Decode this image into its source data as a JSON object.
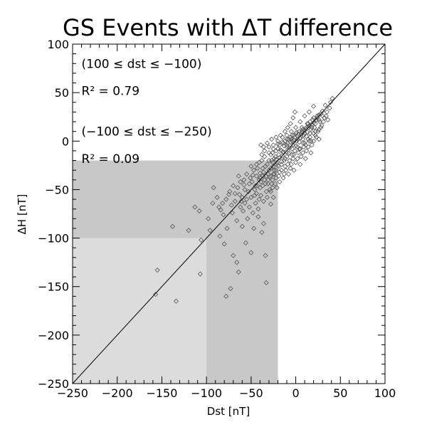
{
  "chart_data": {
    "type": "scatter",
    "title": "GS Events with ΔT difference",
    "xlabel": "Dst [nT]",
    "ylabel": "ΔH [nT]",
    "xlim": [
      -250,
      100
    ],
    "ylim": [
      -250,
      100
    ],
    "xticks": [
      -250,
      -200,
      -150,
      -100,
      -50,
      0,
      50,
      100
    ],
    "yticks": [
      -250,
      -200,
      -150,
      -100,
      -50,
      0,
      50,
      100
    ],
    "reference_line": "y = x",
    "annotations": [
      "(100 ≤ dst ≤ −100)",
      "R² = 0.79",
      "(−100 ≤ dst ≤ −250)",
      "R² = 0.09"
    ],
    "shaded_regions": [
      {
        "x": [
          -250,
          -20
        ],
        "y": [
          -250,
          -20
        ],
        "color": "#c8c8c8"
      },
      {
        "x": [
          -250,
          -100
        ],
        "y": [
          -250,
          -100
        ],
        "color": "#dcdcdc"
      }
    ],
    "marker": "diamond",
    "marker_color": "#555555",
    "series": [
      {
        "points": [
          [
            -155,
            -133
          ],
          [
            -157,
            -158
          ],
          [
            -138,
            -88
          ],
          [
            -134,
            -165
          ],
          [
            -120,
            -92
          ],
          [
            -113,
            -68
          ],
          [
            -108,
            -72
          ],
          [
            -106,
            -102
          ],
          [
            -107,
            -137
          ],
          [
            -98,
            -80
          ],
          [
            -96,
            -92
          ],
          [
            -93,
            -64
          ],
          [
            -85,
            -98
          ],
          [
            -84,
            -71
          ],
          [
            -81,
            -76
          ],
          [
            -80,
            -106
          ],
          [
            -78,
            -160
          ],
          [
            -75,
            -55
          ],
          [
            -73,
            -152
          ],
          [
            -70,
            -118
          ],
          [
            -66,
            -125
          ],
          [
            -64,
            -135
          ],
          [
            -60,
            -88
          ],
          [
            -56,
            -105
          ],
          [
            -50,
            -115
          ],
          [
            -47,
            -90
          ],
          [
            -42,
            -78
          ],
          [
            -38,
            -94
          ],
          [
            -36,
            -85
          ],
          [
            -34,
            -118
          ],
          [
            -33,
            -146
          ],
          [
            -28,
            -65
          ],
          [
            -26,
            -48
          ],
          [
            -24,
            -34
          ],
          [
            -92,
            -48
          ],
          [
            -88,
            -58
          ],
          [
            -77,
            -90
          ],
          [
            -71,
            -74
          ],
          [
            -68,
            -62
          ],
          [
            -58,
            -45
          ],
          [
            -52,
            -68
          ],
          [
            -46,
            -50
          ],
          [
            -41,
            -60
          ],
          [
            -39,
            -42
          ],
          [
            -31,
            -44
          ],
          [
            -29,
            -37
          ],
          [
            -63,
            -55
          ],
          [
            -55,
            -60
          ],
          [
            -49,
            -42
          ],
          [
            -44,
            -36
          ],
          [
            -40,
            -33
          ],
          [
            -37,
            -28
          ],
          [
            -35,
            -40
          ],
          [
            -32,
            -24
          ],
          [
            -30,
            -30
          ],
          [
            -27,
            -20
          ],
          [
            -25,
            -26
          ],
          [
            -23,
            -16
          ],
          [
            -21,
            -22
          ],
          [
            -19,
            -14
          ],
          [
            -17,
            -9
          ],
          [
            -15,
            -15
          ],
          [
            -13,
            -5
          ],
          [
            -11,
            -11
          ],
          [
            -9,
            -2
          ],
          [
            -7,
            -7
          ],
          [
            -5,
            2
          ],
          [
            -3,
            -4
          ],
          [
            -1,
            4
          ],
          [
            1,
            0
          ],
          [
            3,
            7
          ],
          [
            5,
            3
          ],
          [
            7,
            10
          ],
          [
            9,
            6
          ],
          [
            11,
            13
          ],
          [
            13,
            9
          ],
          [
            15,
            16
          ],
          [
            17,
            12
          ],
          [
            20,
            19
          ],
          [
            23,
            22
          ],
          [
            26,
            27
          ],
          [
            30,
            31
          ],
          [
            33,
            37
          ],
          [
            -36,
            -32
          ],
          [
            -34,
            -26
          ],
          [
            -31,
            -34
          ],
          [
            -28,
            -28
          ],
          [
            -26,
            -22
          ],
          [
            -24,
            -30
          ],
          [
            -22,
            -19
          ],
          [
            -20,
            -25
          ],
          [
            -18,
            -17
          ],
          [
            -16,
            -21
          ],
          [
            -14,
            -11
          ],
          [
            -12,
            -18
          ],
          [
            -10,
            -6
          ],
          [
            -8,
            -13
          ],
          [
            -6,
            -1
          ],
          [
            -4,
            -8
          ],
          [
            -2,
            1
          ],
          [
            0,
            -5
          ],
          [
            2,
            5
          ],
          [
            4,
            -1
          ],
          [
            6,
            8
          ],
          [
            8,
            2
          ],
          [
            10,
            11
          ],
          [
            12,
            5
          ],
          [
            14,
            14
          ],
          [
            16,
            8
          ],
          [
            18,
            17
          ],
          [
            21,
            14
          ],
          [
            24,
            24
          ],
          [
            27,
            20
          ],
          [
            -48,
            -35
          ],
          [
            -45,
            -46
          ],
          [
            -43,
            -28
          ],
          [
            -40,
            -48
          ],
          [
            -38,
            -20
          ],
          [
            -35,
            -16
          ],
          [
            -33,
            -52
          ],
          [
            -30,
            -12
          ],
          [
            -27,
            -44
          ],
          [
            -25,
            -8
          ],
          [
            -22,
            -38
          ],
          [
            -20,
            -3
          ],
          [
            -18,
            -32
          ],
          [
            -15,
            -1
          ],
          [
            -12,
            -26
          ],
          [
            -10,
            2
          ],
          [
            -7,
            -20
          ],
          [
            -4,
            6
          ],
          [
            -2,
            -14
          ],
          [
            1,
            9
          ],
          [
            4,
            -8
          ],
          [
            7,
            14
          ],
          [
            10,
            -2
          ],
          [
            13,
            18
          ],
          [
            16,
            4
          ],
          [
            19,
            22
          ],
          [
            22,
            10
          ],
          [
            -44,
            -54
          ],
          [
            -41,
            -40
          ],
          [
            -37,
            -46
          ],
          [
            -33,
            -36
          ],
          [
            -29,
            -50
          ],
          [
            -26,
            -40
          ],
          [
            -23,
            -44
          ],
          [
            -19,
            -36
          ],
          [
            -16,
            -30
          ],
          [
            -13,
            -34
          ],
          [
            -9,
            -24
          ],
          [
            -6,
            -28
          ],
          [
            -3,
            -18
          ],
          [
            0,
            -22
          ],
          [
            3,
            -12
          ],
          [
            6,
            -16
          ],
          [
            9,
            -6
          ],
          [
            12,
            -10
          ],
          [
            15,
            0
          ],
          [
            18,
            -4
          ],
          [
            22,
            6
          ],
          [
            26,
            2
          ],
          [
            -53,
            -52
          ],
          [
            -51,
            -38
          ],
          [
            -57,
            -50
          ],
          [
            -61,
            -62
          ],
          [
            -65,
            -48
          ],
          [
            -68,
            -54
          ],
          [
            -72,
            -66
          ],
          [
            -66,
            -82
          ],
          [
            -59,
            -72
          ],
          [
            -54,
            -80
          ],
          [
            -48,
            -74
          ],
          [
            -45,
            -64
          ],
          [
            -42,
            -70
          ],
          [
            -39,
            -56
          ],
          [
            -36,
            -62
          ],
          [
            -32,
            -58
          ],
          [
            -28,
            -52
          ],
          [
            -25,
            -58
          ],
          [
            -21,
            -48
          ],
          [
            -18,
            -42
          ],
          [
            -14,
            -38
          ],
          [
            -11,
            -30
          ],
          [
            -8,
            -34
          ],
          [
            -5,
            -24
          ],
          [
            -2,
            -30
          ],
          [
            2,
            -18
          ],
          [
            5,
            -24
          ],
          [
            8,
            -12
          ],
          [
            11,
            -18
          ],
          [
            14,
            -6
          ],
          [
            17,
            -12
          ],
          [
            20,
            0
          ],
          [
            25,
            10
          ],
          [
            28,
            14
          ],
          [
            32,
            24
          ],
          [
            35,
            30
          ],
          [
            38,
            34
          ],
          [
            -30,
            -20
          ],
          [
            -28,
            -14
          ],
          [
            -26,
            -12
          ],
          [
            -24,
            -18
          ],
          [
            -22,
            -10
          ],
          [
            -20,
            -8
          ],
          [
            -18,
            -4
          ],
          [
            -16,
            -10
          ],
          [
            -14,
            -2
          ],
          [
            -12,
            0
          ],
          [
            -10,
            -4
          ],
          [
            -8,
            2
          ],
          [
            -6,
            4
          ],
          [
            -4,
            0
          ],
          [
            -2,
            6
          ],
          [
            0,
            8
          ],
          [
            2,
            2
          ],
          [
            4,
            10
          ],
          [
            6,
            6
          ],
          [
            8,
            12
          ],
          [
            10,
            8
          ],
          [
            12,
            14
          ],
          [
            14,
            18
          ],
          [
            16,
            20
          ],
          [
            18,
            14
          ],
          [
            20,
            24
          ],
          [
            22,
            18
          ],
          [
            24,
            26
          ],
          [
            26,
            22
          ],
          [
            28,
            28
          ],
          [
            30,
            26
          ],
          [
            20,
            36
          ],
          [
            15,
            30
          ],
          [
            10,
            26
          ],
          [
            5,
            20
          ],
          [
            0,
            14
          ],
          [
            -5,
            10
          ],
          [
            -10,
            6
          ],
          [
            -15,
            4
          ],
          [
            -20,
            0
          ],
          [
            -25,
            -4
          ],
          [
            -30,
            -6
          ],
          [
            -35,
            -10
          ],
          [
            -38,
            -14
          ],
          [
            -41,
            -22
          ],
          [
            -44,
            -24
          ],
          [
            -47,
            -30
          ],
          [
            -50,
            -26
          ],
          [
            -52,
            -44
          ],
          [
            -55,
            -34
          ],
          [
            -58,
            -40
          ],
          [
            -62,
            -42
          ],
          [
            -64,
            -36
          ],
          [
            -70,
            -46
          ],
          [
            -74,
            -52
          ],
          [
            -78,
            -60
          ],
          [
            -82,
            -64
          ],
          [
            -86,
            -68
          ],
          [
            -62,
            -68
          ],
          [
            -60,
            -58
          ],
          [
            -57,
            -64
          ],
          [
            -50,
            -58
          ],
          [
            -46,
            -56
          ],
          [
            -43,
            -46
          ],
          [
            -40,
            -38
          ],
          [
            -37,
            -36
          ],
          [
            -34,
            -44
          ],
          [
            -31,
            -40
          ],
          [
            -28,
            -36
          ],
          [
            -25,
            -34
          ],
          [
            -22,
            -30
          ],
          [
            -19,
            -26
          ],
          [
            -16,
            -24
          ],
          [
            -13,
            -20
          ],
          [
            -10,
            -16
          ],
          [
            -7,
            -12
          ],
          [
            -4,
            -14
          ],
          [
            -1,
            -10
          ],
          [
            2,
            -6
          ],
          [
            5,
            -8
          ],
          [
            8,
            -2
          ],
          [
            11,
            -4
          ],
          [
            14,
            2
          ],
          [
            17,
            0
          ],
          [
            20,
            8
          ],
          [
            23,
            4
          ],
          [
            26,
            12
          ],
          [
            29,
            16
          ],
          [
            31,
            20
          ],
          [
            34,
            26
          ],
          [
            36,
            22
          ],
          [
            39,
            40
          ],
          [
            41,
            44
          ],
          [
            -1,
            30
          ],
          [
            -3,
            24
          ],
          [
            -6,
            18
          ],
          [
            -9,
            14
          ],
          [
            -12,
            10
          ],
          [
            -17,
            6
          ],
          [
            -22,
            4
          ],
          [
            -27,
            2
          ],
          [
            -32,
            -2
          ],
          [
            -36,
            -6
          ],
          [
            -39,
            -4
          ]
        ]
      }
    ]
  }
}
